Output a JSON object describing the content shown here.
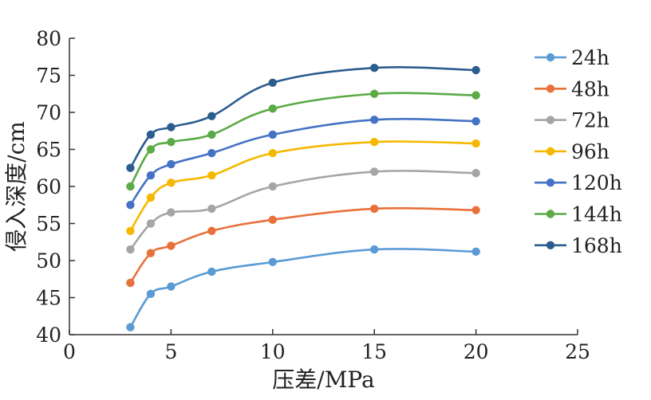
{
  "chart_data": {
    "type": "line",
    "x": [
      3,
      4,
      5,
      7,
      10,
      15,
      20
    ],
    "xlabel": "压差/MPa",
    "ylabel": "侵入深度/cm",
    "xlim": [
      0,
      25
    ],
    "ylim": [
      40,
      80
    ],
    "xticks": [
      "0",
      "5",
      "10",
      "15",
      "20",
      "25"
    ],
    "yticks": [
      "40",
      "45",
      "50",
      "55",
      "60",
      "65",
      "70",
      "75",
      "80"
    ],
    "grid": false,
    "legend_position": "right",
    "series": [
      {
        "name": "24h",
        "color": "#5b9bd5",
        "values": [
          41.0,
          45.5,
          46.5,
          48.5,
          49.8,
          51.5,
          51.2
        ]
      },
      {
        "name": "48h",
        "color": "#e8713b",
        "values": [
          47.0,
          51.0,
          52.0,
          54.0,
          55.5,
          57.0,
          56.8
        ]
      },
      {
        "name": "72h",
        "color": "#a5a5a5",
        "values": [
          51.5,
          55.0,
          56.5,
          57.0,
          60.0,
          62.0,
          61.8
        ]
      },
      {
        "name": "96h",
        "color": "#f5b800",
        "values": [
          54.0,
          58.5,
          60.5,
          61.5,
          64.5,
          66.0,
          65.8
        ]
      },
      {
        "name": "120h",
        "color": "#4472c4",
        "values": [
          57.5,
          61.5,
          63.0,
          64.5,
          67.0,
          69.0,
          68.8
        ]
      },
      {
        "name": "144h",
        "color": "#5aaa46",
        "values": [
          60.0,
          65.0,
          66.0,
          67.0,
          70.5,
          72.5,
          72.3
        ]
      },
      {
        "name": "168h",
        "color": "#2c5d8f",
        "values": [
          62.5,
          67.0,
          68.0,
          69.5,
          74.0,
          76.0,
          75.7
        ]
      }
    ]
  }
}
